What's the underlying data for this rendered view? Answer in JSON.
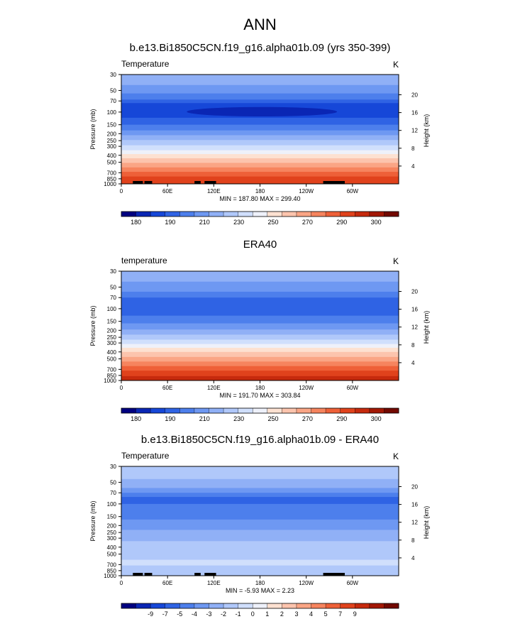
{
  "page": {
    "title": "ANN"
  },
  "colors": {
    "temp_levels": [
      "#000080",
      "#0a26b4",
      "#1647d8",
      "#2f63e4",
      "#4d7fec",
      "#6e98f2",
      "#90b0f6",
      "#b0c8fa",
      "#d0dffc",
      "#eef1fa",
      "#fde1d1",
      "#fcc4ad",
      "#faa585",
      "#f6845e",
      "#ee6038",
      "#e0421c",
      "#c62a0d",
      "#a31805",
      "#720900"
    ],
    "diff_levels": [
      "#000080",
      "#0a26b4",
      "#1647d8",
      "#2f63e4",
      "#4d7fec",
      "#6e98f2",
      "#90b0f6",
      "#b0c8fa",
      "#d0dffc",
      "#eef1fa",
      "#fde1d1",
      "#fcc4ad",
      "#faa585",
      "#f6845e",
      "#ee6038",
      "#e0421c",
      "#c62a0d",
      "#a31805",
      "#720900"
    ],
    "land_mask": "#000000"
  },
  "chart_data": [
    {
      "type": "heatmap",
      "title": "b.e13.Bi1850C5CN.f19_g16.alpha01b.09 (yrs 350-399)",
      "left_label": "Temperature",
      "right_label": "K",
      "ylabel": "Pressure (mb)",
      "ylabel_right": "Height (km)",
      "x_ticks": [
        "0",
        "60E",
        "120E",
        "180",
        "120W",
        "60W"
      ],
      "x_tick_values": [
        0,
        60,
        120,
        180,
        240,
        300
      ],
      "xlim": [
        0,
        360
      ],
      "y_ticks": [
        30,
        50,
        70,
        100,
        150,
        200,
        250,
        300,
        400,
        500,
        700,
        850,
        1000
      ],
      "ylim": [
        30,
        1000
      ],
      "height_ticks": [
        "4",
        "8",
        "12",
        "16",
        "20"
      ],
      "height_values": [
        4,
        8,
        12,
        16,
        20
      ],
      "stats": "MIN = 187.80   MAX = 299.40",
      "colorbar_labels": [
        "180",
        "190",
        "210",
        "230",
        "250",
        "270",
        "290",
        "300"
      ],
      "bands_by_pressure": [
        {
          "p": 30,
          "level": 6
        },
        {
          "p": 42,
          "level": 5
        },
        {
          "p": 55,
          "level": 4
        },
        {
          "p": 67,
          "level": 3
        },
        {
          "p": 75,
          "level": 2
        },
        {
          "p": 120,
          "level": 3
        },
        {
          "p": 150,
          "level": 4
        },
        {
          "p": 180,
          "level": 5
        },
        {
          "p": 210,
          "level": 6
        },
        {
          "p": 245,
          "level": 7
        },
        {
          "p": 290,
          "level": 8
        },
        {
          "p": 340,
          "level": 9
        },
        {
          "p": 385,
          "level": 10
        },
        {
          "p": 440,
          "level": 11
        },
        {
          "p": 510,
          "level": 12
        },
        {
          "p": 590,
          "level": 13
        },
        {
          "p": 680,
          "level": 14
        },
        {
          "p": 790,
          "level": 15
        },
        {
          "p": 1000,
          "level": 15
        }
      ],
      "tropopause_min_patch": {
        "lon": [
          85,
          280
        ],
        "p": [
          85,
          115
        ],
        "level": 1
      }
    },
    {
      "type": "heatmap",
      "title": "ERA40",
      "left_label": "temperature",
      "right_label": "K",
      "ylabel": "Pressure (mb)",
      "ylabel_right": "Height (km)",
      "x_ticks": [
        "0",
        "60E",
        "120E",
        "180",
        "120W",
        "60W"
      ],
      "x_tick_values": [
        0,
        60,
        120,
        180,
        240,
        300
      ],
      "xlim": [
        0,
        360
      ],
      "y_ticks": [
        30,
        50,
        70,
        100,
        150,
        200,
        250,
        300,
        400,
        500,
        700,
        850,
        1000
      ],
      "ylim": [
        30,
        1000
      ],
      "height_ticks": [
        "4",
        "8",
        "12",
        "16",
        "20"
      ],
      "height_values": [
        4,
        8,
        12,
        16,
        20
      ],
      "stats": "MIN = 191.70   MAX = 303.84",
      "colorbar_labels": [
        "180",
        "190",
        "210",
        "230",
        "250",
        "270",
        "290",
        "300"
      ],
      "bands_by_pressure": [
        {
          "p": 30,
          "level": 6
        },
        {
          "p": 42,
          "level": 5
        },
        {
          "p": 58,
          "level": 4
        },
        {
          "p": 70,
          "level": 3
        },
        {
          "p": 125,
          "level": 4
        },
        {
          "p": 160,
          "level": 5
        },
        {
          "p": 195,
          "level": 6
        },
        {
          "p": 230,
          "level": 7
        },
        {
          "p": 270,
          "level": 8
        },
        {
          "p": 310,
          "level": 9
        },
        {
          "p": 350,
          "level": 10
        },
        {
          "p": 400,
          "level": 11
        },
        {
          "p": 470,
          "level": 12
        },
        {
          "p": 545,
          "level": 13
        },
        {
          "p": 630,
          "level": 14
        },
        {
          "p": 730,
          "level": 15
        },
        {
          "p": 870,
          "level": 16
        },
        {
          "p": 1000,
          "level": 16
        }
      ]
    },
    {
      "type": "heatmap",
      "title": "b.e13.Bi1850C5CN.f19_g16.alpha01b.09 - ERA40",
      "left_label": "Temperature",
      "right_label": "K",
      "ylabel": "Pressure (mb)",
      "ylabel_right": "Height (km)",
      "x_ticks": [
        "0",
        "60E",
        "120E",
        "180",
        "120W",
        "60W"
      ],
      "x_tick_values": [
        0,
        60,
        120,
        180,
        240,
        300
      ],
      "xlim": [
        0,
        360
      ],
      "y_ticks": [
        30,
        50,
        70,
        100,
        150,
        200,
        250,
        300,
        400,
        500,
        700,
        850,
        1000
      ],
      "ylim": [
        30,
        1000
      ],
      "height_ticks": [
        "4",
        "8",
        "12",
        "16",
        "20"
      ],
      "height_values": [
        4,
        8,
        12,
        16,
        20
      ],
      "stats": "MIN = -5.93   MAX =  2.23",
      "colorbar_labels": [
        "-9",
        "-7",
        "-5",
        "-4",
        "-3",
        "-2",
        "-1",
        "0",
        "1",
        "2",
        "3",
        "4",
        "5",
        "7",
        "9"
      ],
      "bands_by_pressure": [
        {
          "p": 30,
          "level": 7
        },
        {
          "p": 45,
          "level": 6
        },
        {
          "p": 60,
          "level": 5
        },
        {
          "p": 70,
          "level": 4
        },
        {
          "p": 80,
          "level": 3
        },
        {
          "p": 100,
          "level": 4
        },
        {
          "p": 165,
          "level": 5
        },
        {
          "p": 230,
          "level": 6
        },
        {
          "p": 330,
          "level": 7
        },
        {
          "p": 600,
          "level": 8
        },
        {
          "p": 720,
          "level": 7
        },
        {
          "p": 1000,
          "level": 7
        }
      ]
    }
  ]
}
